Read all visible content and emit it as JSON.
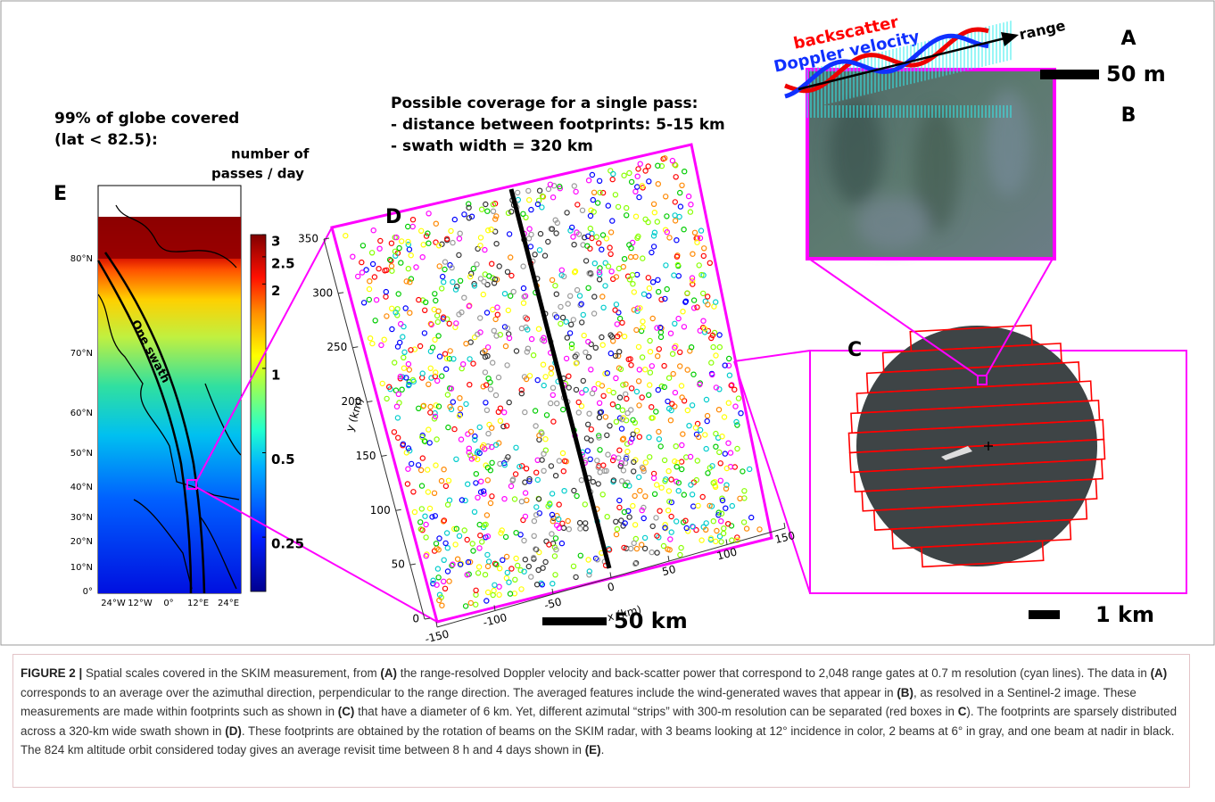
{
  "figure": {
    "panel_E": {
      "label": "E",
      "coverage": [
        "99% of globe covered",
        "(lat < 82.5):"
      ],
      "swath_label": "One swath",
      "lat_labels": [
        "80°N",
        "70°N",
        "60°N",
        "50°N",
        "40°N",
        "30°N",
        "20°N",
        "10°N",
        "0°"
      ],
      "lon_labels": [
        "24°W",
        "12°W",
        "0°",
        "12°E",
        "24°E"
      ]
    },
    "colorbar": {
      "title": [
        "number of",
        "passes / day"
      ],
      "log": true,
      "ylim": [
        0.16,
        3
      ],
      "yticks": [
        0.25,
        0.5,
        1,
        2,
        2.5,
        3
      ]
    },
    "panel_D": {
      "label": "D",
      "title": [
        "Possible coverage for a single pass:",
        "- distance between footprints: 5-15 km",
        "- swath width = 320 km"
      ],
      "ylabel": "y (km)",
      "xlabel": "x (km)",
      "ylim": [
        0,
        350
      ],
      "yticks": [
        0,
        50,
        100,
        150,
        200,
        250,
        300,
        350
      ],
      "xlim": [
        -150,
        150
      ],
      "xticks": [
        -150,
        -100,
        -50,
        0,
        50,
        100,
        150
      ],
      "scale": "50 km"
    },
    "panel_A": {
      "label": "A",
      "backscatter": "backscatter",
      "doppler": "Doppler velocity",
      "range": "range",
      "scale": "50 m"
    },
    "panel_B": {
      "label": "B"
    },
    "panel_C": {
      "label": "C",
      "scale": "1 km"
    },
    "caption": {
      "segments": [
        {
          "text": "FIGURE 2 |",
          "bold": true
        },
        " Spatial scales covered in the SKIM measurement, from ",
        {
          "text": "(A)",
          "bold": true
        },
        " the range-resolved Doppler velocity and back-scatter power that correspond to 2,048 range gates at 0.7 m resolution (cyan lines). The data in ",
        {
          "text": "(A)",
          "bold": true
        },
        " corresponds to an average over the azimuthal direction, perpendicular to the range direction. The averaged features include the wind-generated waves that appear in ",
        {
          "text": "(B)",
          "bold": true
        },
        ", as resolved in a Sentinel-2 image. These measurements are made within footprints such as shown in ",
        {
          "text": "(C)",
          "bold": true
        },
        " that have a diameter of 6 km. Yet, different azimutal “strips” with 300-m resolution can be separated (red boxes in ",
        {
          "text": "C",
          "bold": true
        },
        "). The footprints are sparsely distributed across a 320-km wide swath shown in ",
        {
          "text": "(D)",
          "bold": true
        },
        ". These footprints are obtained by the rotation of beams on the SKIM radar, with 3 beams looking at 12° incidence in color, 2 beams at 6° in gray, and one beam at nadir in black. The 824 km altitude orbit considered today gives an average revisit time between 8 h and 4 days shown in ",
        {
          "text": "(E)",
          "bold": true
        },
        "."
      ]
    }
  }
}
